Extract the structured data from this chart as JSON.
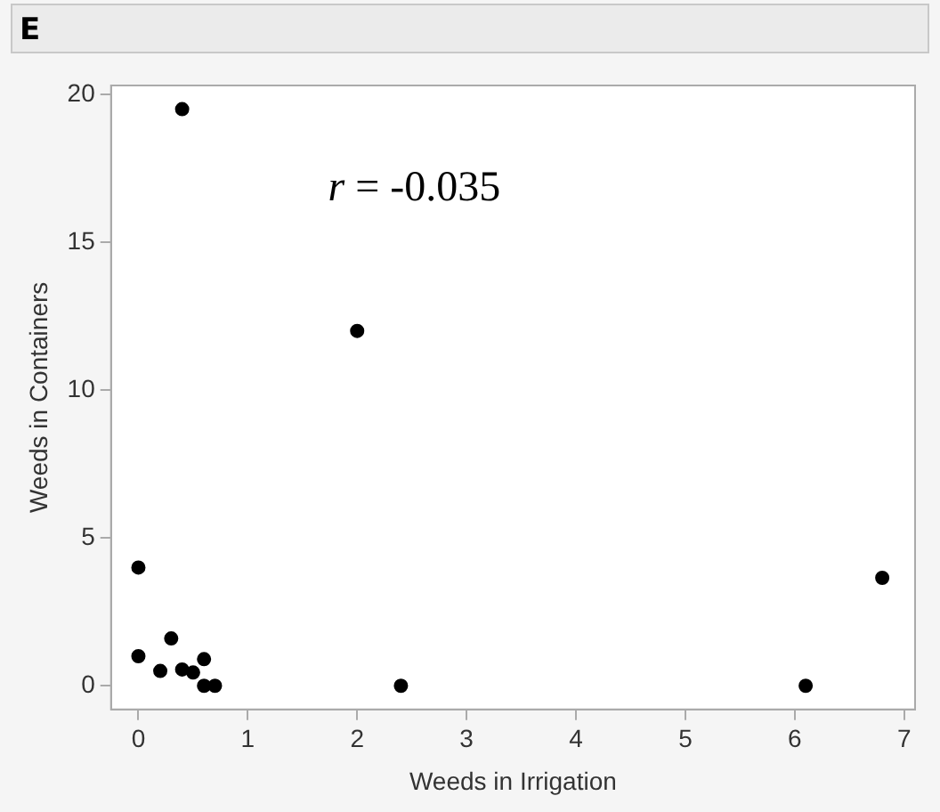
{
  "chart_data": {
    "type": "scatter",
    "title": "E",
    "xlabel": "Weeds in Irrigation",
    "ylabel": "Weeds in Containers",
    "annotations": [
      "r = -0.035"
    ],
    "x": [
      0,
      0,
      0.2,
      0.3,
      0.4,
      0.5,
      0.6,
      0.6,
      0.7,
      0.4,
      2.0,
      2.4,
      6.1,
      6.8
    ],
    "series": [
      {
        "color": "#000000",
        "values": [
          4,
          1.0,
          0.5,
          1.6,
          0.55,
          0.45,
          0.9,
          0,
          0,
          19.5,
          12.0,
          0,
          0,
          3.65
        ]
      }
    ],
    "xlim": [
      -0.25,
      7.1
    ],
    "xticks": [
      0,
      1,
      2,
      3,
      4,
      5,
      6,
      7
    ],
    "ylim": [
      -0.8,
      20.3
    ],
    "yticks": [
      0,
      5,
      10,
      15,
      20
    ],
    "grid": false,
    "legend": false,
    "marker": "circle"
  }
}
